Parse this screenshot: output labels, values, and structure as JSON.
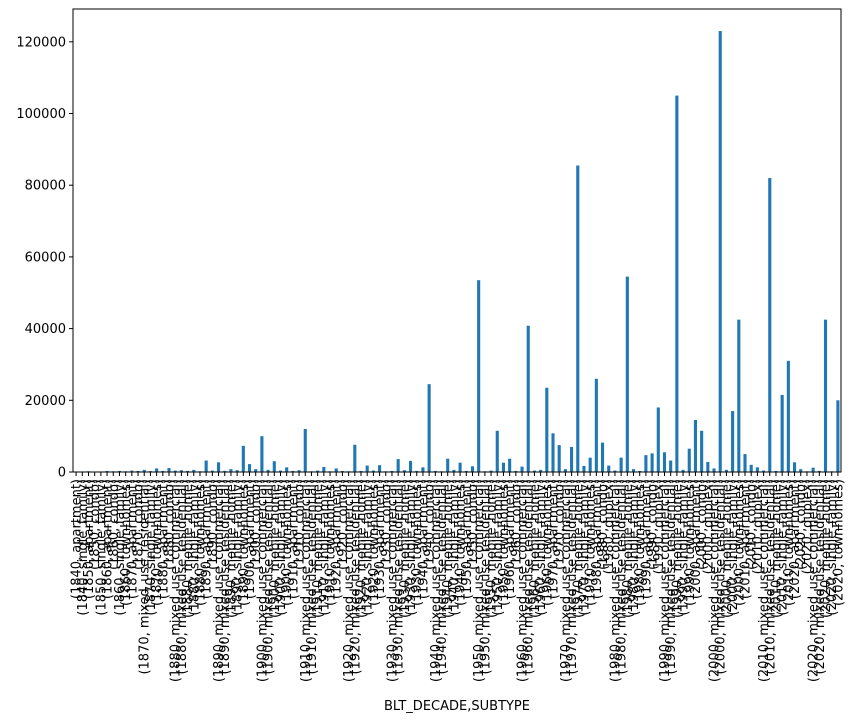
{
  "chart_data": {
    "type": "bar",
    "xlabel": "BLT_DECADE,SUBTYPE",
    "color": "#1f77b4",
    "ylim": [
      0,
      129150
    ],
    "yticks": [
      0,
      20000,
      40000,
      60000,
      80000,
      100000,
      120000
    ],
    "categories": [
      "(1840, apartment)",
      "(1840, single_family)",
      "(1850, apartment)",
      "(1850, condo)",
      "(1850, single_family)",
      "(1860, apartment)",
      "(1860, condo)",
      "(1860, single_family)",
      "(1860, townhomes)",
      "(1870, apartment)",
      "(1870, condo)",
      "(1870, mixed_use_residential)",
      "(1870, single_family)",
      "(1870, townhomes)",
      "(1880, apartment)",
      "(1880, condo)",
      "(1880, mixed_use_commercial)",
      "(1880, mixed_use_residential)",
      "(1880, mobile_home)",
      "(1880, single_family)",
      "(1880, townhomes)",
      "(1890, apartment)",
      "(1890, condo)",
      "(1890, mixed_use_commercial)",
      "(1890, mixed_use_residential)",
      "(1890, mobile_home)",
      "(1890, single_family)",
      "(1890, townhomes)",
      "(1900, apartment)",
      "(1900, condo)",
      "(1900, mixed_use_commercial)",
      "(1900, mixed_use_residential)",
      "(1900, mobile_home)",
      "(1900, single_family)",
      "(1900, townhomes)",
      "(1910, apartment)",
      "(1910, condo)",
      "(1910, mixed_use_commercial)",
      "(1910, mixed_use_residential)",
      "(1910, mobile_home)",
      "(1910, single_family)",
      "(1910, townhomes)",
      "(1920, apartment)",
      "(1920, condo)",
      "(1920, mixed_use_commercial)",
      "(1920, mixed_use_residential)",
      "(1920, mobile_home)",
      "(1920, single_family)",
      "(1920, townhomes)",
      "(1930, apartment)",
      "(1930, condo)",
      "(1930, mixed_use_commercial)",
      "(1930, mixed_use_residential)",
      "(1930, mobile_home)",
      "(1930, single_family)",
      "(1930, townhomes)",
      "(1940, apartment)",
      "(1940, condo)",
      "(1940, mixed_use_commercial)",
      "(1940, mixed_use_residential)",
      "(1940, mobile_home)",
      "(1940, single_family)",
      "(1940, townhomes)",
      "(1950, apartment)",
      "(1950, condo)",
      "(1950, mixed_use_commercial)",
      "(1950, mixed_use_residential)",
      "(1950, mobile_home)",
      "(1950, single_family)",
      "(1950, townhomes)",
      "(1960, apartment)",
      "(1960, condo)",
      "(1960, mixed_use_commercial)",
      "(1960, mixed_use_residential)",
      "(1960, mobile_home)",
      "(1960, single_family)",
      "(1960, townhomes)",
      "(1970, apartment)",
      "(1970, condo)",
      "(1970, mixed_use_commercial)",
      "(1970, mixed_use_residential)",
      "(1970, mobile_home)",
      "(1970, single_family)",
      "(1970, townhomes)",
      "(1980, apartment)",
      "(1980, condo)",
      "(1980, duplex)",
      "(1980, mixed_use_commercial)",
      "(1980, mixed_use_residential)",
      "(1980, mobile_home)",
      "(1980, single_family)",
      "(1980, townhomes)",
      "(1990, apartment)",
      "(1990, condo)",
      "(1990, duplex)",
      "(1990, mixed_use_commercial)",
      "(1990, mixed_use_residential)",
      "(1990, mobile_home)",
      "(1990, single_family)",
      "(1990, townhomes)",
      "(2000, apartment)",
      "(2000, condo)",
      "(2000, duplex)",
      "(2000, mixed_use_commercial)",
      "(2000, mixed_use_residential)",
      "(2000, mobile_home)",
      "(2000, single_family)",
      "(2000, townhomes)",
      "(2010, apartment)",
      "(2010, condo)",
      "(2010, duplex)",
      "(2010, mixed_use_commercial)",
      "(2010, mixed_use_residential)",
      "(2010, mobile_home)",
      "(2010, single_family)",
      "(2010, townhomes)",
      "(2020, apartment)",
      "(2020, condo)",
      "(2020, duplex)",
      "(2020, mixed_use_commercial)",
      "(2020, mixed_use_residential)",
      "(2020, mobile_home)",
      "(2020, single_family)",
      "(2020, townhomes)"
    ],
    "values": [
      100,
      150,
      200,
      100,
      150,
      300,
      200,
      300,
      200,
      400,
      300,
      600,
      250,
      1000,
      300,
      1100,
      400,
      500,
      300,
      600,
      200,
      3200,
      400,
      2700,
      300,
      800,
      500,
      7300,
      2200,
      800,
      10000,
      600,
      3000,
      400,
      1300,
      300,
      500,
      12000,
      200,
      400,
      1400,
      200,
      1000,
      300,
      200,
      7600,
      300,
      1800,
      400,
      1900,
      200,
      300,
      3600,
      500,
      3100,
      300,
      1300,
      24500,
      300,
      200,
      3700,
      600,
      2600,
      300,
      1600,
      53500,
      200,
      400,
      11500,
      2600,
      3700,
      300,
      1500,
      40800,
      400,
      600,
      23500,
      10800,
      7500,
      800,
      7000,
      85500,
      1700,
      4000,
      26000,
      8200,
      1800,
      400,
      4000,
      54500,
      800,
      300,
      4700,
      5200,
      18000,
      5500,
      3200,
      105000,
      600,
      6500,
      14500,
      11500,
      2800,
      1000,
      123000,
      600,
      17000,
      42500,
      5000,
      2000,
      1300,
      400,
      82000,
      300,
      21500,
      31000,
      2700,
      800,
      200,
      1200,
      300,
      42500,
      200,
      20000
    ]
  }
}
